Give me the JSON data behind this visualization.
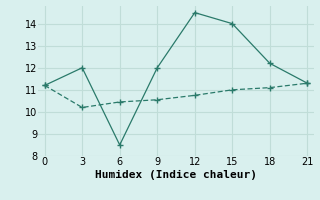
{
  "line1_x": [
    0,
    3,
    6,
    9,
    12,
    15,
    18,
    21
  ],
  "line1_y": [
    11.2,
    12.0,
    8.5,
    12.0,
    14.5,
    14.0,
    12.2,
    11.3
  ],
  "line2_x": [
    0,
    3,
    6,
    9,
    12,
    15,
    18,
    21
  ],
  "line2_y": [
    11.2,
    10.2,
    10.45,
    10.55,
    10.75,
    11.0,
    11.1,
    11.3
  ],
  "line_color": "#2a7a6a",
  "xlabel": "Humidex (Indice chaleur)",
  "xlim": [
    -0.5,
    21.5
  ],
  "ylim": [
    8,
    14.8
  ],
  "yticks": [
    8,
    9,
    10,
    11,
    12,
    13,
    14
  ],
  "xticks": [
    0,
    3,
    6,
    9,
    12,
    15,
    18,
    21
  ],
  "bg_color": "#d9f0ee",
  "grid_color": "#c0ddd8",
  "xlabel_fontsize": 8,
  "tick_fontsize": 7
}
